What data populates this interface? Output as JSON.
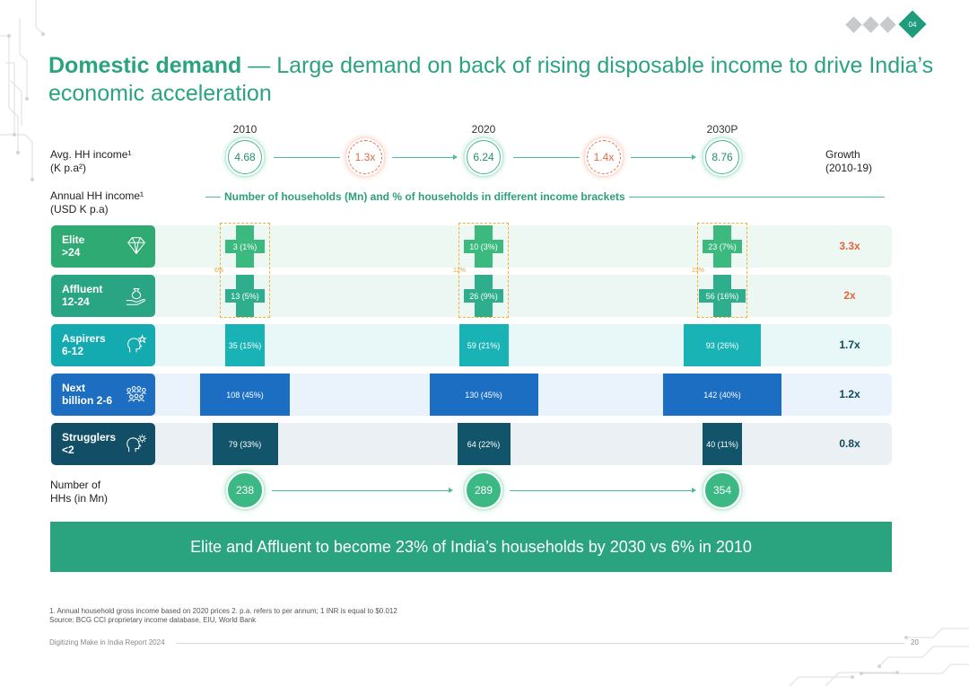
{
  "page": {
    "title_bold": "Domestic demand",
    "title_rest": " — Large demand on back of rising disposable income to drive India’s economic acceleration",
    "page_badge": "04",
    "colors": {
      "accent": "#2aa37f",
      "orange": "#e0663f"
    }
  },
  "labels": {
    "avg_income_line1": "Avg. HH income¹",
    "avg_income_line2": "(K p.a²)",
    "annual_income_line1": "Annual HH income¹",
    "annual_income_line2": "(USD K p.a)",
    "growth_line1": "Growth",
    "growth_line2": "(2010-19)",
    "num_hh_line1": "Number of",
    "num_hh_line2": "HHs (in Mn)",
    "caption": "Number of households (Mn) and % of households in different income brackets"
  },
  "chart_data": {
    "type": "bar",
    "years": [
      "2010",
      "2020",
      "2030P"
    ],
    "avg_hh_income": [
      "4.68",
      "6.24",
      "8.76"
    ],
    "income_multipliers": [
      "1.3x",
      "1.4x"
    ],
    "total_households": [
      "238",
      "289",
      "354"
    ],
    "elite_affluent_share": [
      "6%",
      "12%",
      "23%"
    ],
    "brackets": [
      {
        "name_line1": "Elite",
        "name_line2": ">24",
        "icon": "diamond-icon",
        "growth": "3.3x",
        "growth_color": "#e0663f",
        "bar_color": "#3bb97f",
        "row_bg": "#eef8f2",
        "label_bg": "#2faa73",
        "values": [
          3,
          10,
          23
        ],
        "labels": [
          "3 (1%)",
          "10 (3%)",
          "23 (7%)"
        ]
      },
      {
        "name_line1": "Affluent",
        "name_line2": "12-24",
        "icon": "money-bag-hand-icon",
        "growth": "2x",
        "growth_color": "#e0663f",
        "bar_color": "#2eae8c",
        "row_bg": "#ecf7f4",
        "label_bg": "#2aa583",
        "values": [
          13,
          26,
          56
        ],
        "labels": [
          "13 (5%)",
          "26 (9%)",
          "56 (16%)"
        ]
      },
      {
        "name_line1": "Aspirers",
        "name_line2": "6-12",
        "icon": "head-star-icon",
        "growth": "1.7x",
        "growth_color": "#114a5e",
        "bar_color": "#19b3b6",
        "row_bg": "#e8f7f8",
        "label_bg": "#13aab0",
        "values": [
          35,
          59,
          93
        ],
        "labels": [
          "35 (15%)",
          "59 (21%)",
          "93 (26%)"
        ]
      },
      {
        "name_line1": "Next",
        "name_line2": "billion 2-6",
        "icon": "group-icon",
        "growth": "1.2x",
        "growth_color": "#114a5e",
        "bar_color": "#1b6ec2",
        "row_bg": "#eaf3fb",
        "label_bg": "#1d6ec0",
        "values": [
          108,
          130,
          142
        ],
        "labels": [
          "108 (45%)",
          "130 (45%)",
          "142 (40%)"
        ]
      },
      {
        "name_line1": "Strugglers",
        "name_line2": "<2",
        "icon": "head-gear-icon",
        "growth": "0.8x",
        "growth_color": "#114a5e",
        "bar_color": "#12556b",
        "row_bg": "#eaf0f3",
        "label_bg": "#124f66",
        "values": [
          79,
          64,
          40
        ],
        "labels": [
          "79 (33%)",
          "64 (22%)",
          "40 (11%)"
        ]
      }
    ]
  },
  "banner": "Elite and Affluent to become 23% of India’s households by 2030 vs 6% in 2010",
  "footnotes": {
    "line1": "1. Annual household gross income based on 2020 prices 2. p.a. refers to per annum; 1 INR is equal to $0.012",
    "line2": "Source: BCG CCI proprietary income database, EIU, World Bank"
  },
  "footer": {
    "report": "Digitizing Make in India Report 2024",
    "page_number": "20"
  }
}
